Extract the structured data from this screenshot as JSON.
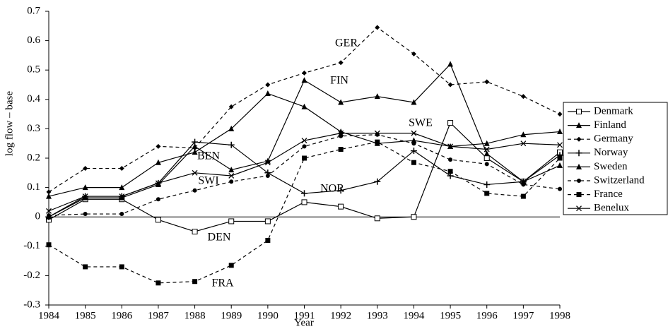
{
  "chart_data": {
    "type": "line",
    "x": [
      1984,
      1985,
      1986,
      1987,
      1988,
      1989,
      1990,
      1991,
      1992,
      1993,
      1994,
      1995,
      1996,
      1997,
      1998
    ],
    "xlabel": "Year",
    "ylabel": "log flow – base",
    "xlim": [
      1984,
      1998
    ],
    "xticks": [
      1984,
      1985,
      1986,
      1987,
      1988,
      1989,
      1990,
      1991,
      1992,
      1993,
      1994,
      1995,
      1996,
      1997,
      1998
    ],
    "ylim": [
      -0.3,
      0.7
    ],
    "yticks": [
      -0.3,
      -0.2,
      -0.1,
      0,
      0.1,
      0.2,
      0.3,
      0.4,
      0.5,
      0.6,
      0.7
    ],
    "legend": "right",
    "annotations": [
      "GER",
      "FIN",
      "SWE",
      "BEN",
      "SWI",
      "NOR",
      "DEN",
      "FRA"
    ],
    "series": [
      {
        "name": "Denmark",
        "color": "#000000",
        "marker": "square-open",
        "dashed": false,
        "values": [
          -0.01,
          0.06,
          0.06,
          -0.01,
          -0.05,
          -0.015,
          -0.015,
          0.05,
          0.035,
          -0.005,
          0.0,
          0.32,
          0.2,
          0.12,
          0.22
        ]
      },
      {
        "name": "Finland",
        "color": "#000000",
        "marker": "triangle",
        "dashed": false,
        "values": [
          0.07,
          0.1,
          0.1,
          0.185,
          0.22,
          0.3,
          0.42,
          0.375,
          0.29,
          0.25,
          0.26,
          0.24,
          0.25,
          0.28,
          0.29
        ]
      },
      {
        "name": "Germany",
        "color": "#000000",
        "marker": "diamond",
        "dashed": true,
        "values": [
          0.085,
          0.165,
          0.165,
          0.24,
          0.235,
          0.375,
          0.45,
          0.49,
          0.525,
          0.645,
          0.555,
          0.45,
          0.46,
          0.41,
          0.35
        ]
      },
      {
        "name": "Norway",
        "color": "#000000",
        "marker": "plus",
        "dashed": false,
        "values": [
          0.0,
          0.07,
          0.07,
          0.115,
          0.255,
          0.245,
          0.15,
          0.08,
          0.09,
          0.12,
          0.225,
          0.14,
          0.11,
          0.12,
          0.21
        ]
      },
      {
        "name": "Sweden",
        "color": "#000000",
        "marker": "triangle",
        "dashed": false,
        "values": [
          0.0,
          0.065,
          0.065,
          0.11,
          0.24,
          0.16,
          0.19,
          0.465,
          0.39,
          0.41,
          0.39,
          0.52,
          0.215,
          0.12,
          0.175
        ]
      },
      {
        "name": "Switzerland",
        "color": "#000000",
        "marker": "circle",
        "dashed": true,
        "values": [
          0.005,
          0.01,
          0.01,
          0.06,
          0.09,
          0.12,
          0.14,
          0.24,
          0.275,
          0.28,
          0.25,
          0.195,
          0.18,
          0.11,
          0.095
        ]
      },
      {
        "name": "France",
        "color": "#000000",
        "marker": "square",
        "dashed": true,
        "values": [
          -0.095,
          -0.17,
          -0.17,
          -0.225,
          -0.22,
          -0.165,
          -0.08,
          0.2,
          0.23,
          0.255,
          0.185,
          0.155,
          0.08,
          0.07,
          0.2
        ]
      },
      {
        "name": "Benelux",
        "color": "#000000",
        "marker": "x",
        "dashed": false,
        "values": [
          0.02,
          0.07,
          0.07,
          0.115,
          0.15,
          0.14,
          0.185,
          0.26,
          0.285,
          0.285,
          0.285,
          0.24,
          0.23,
          0.25,
          0.245
        ]
      }
    ]
  }
}
